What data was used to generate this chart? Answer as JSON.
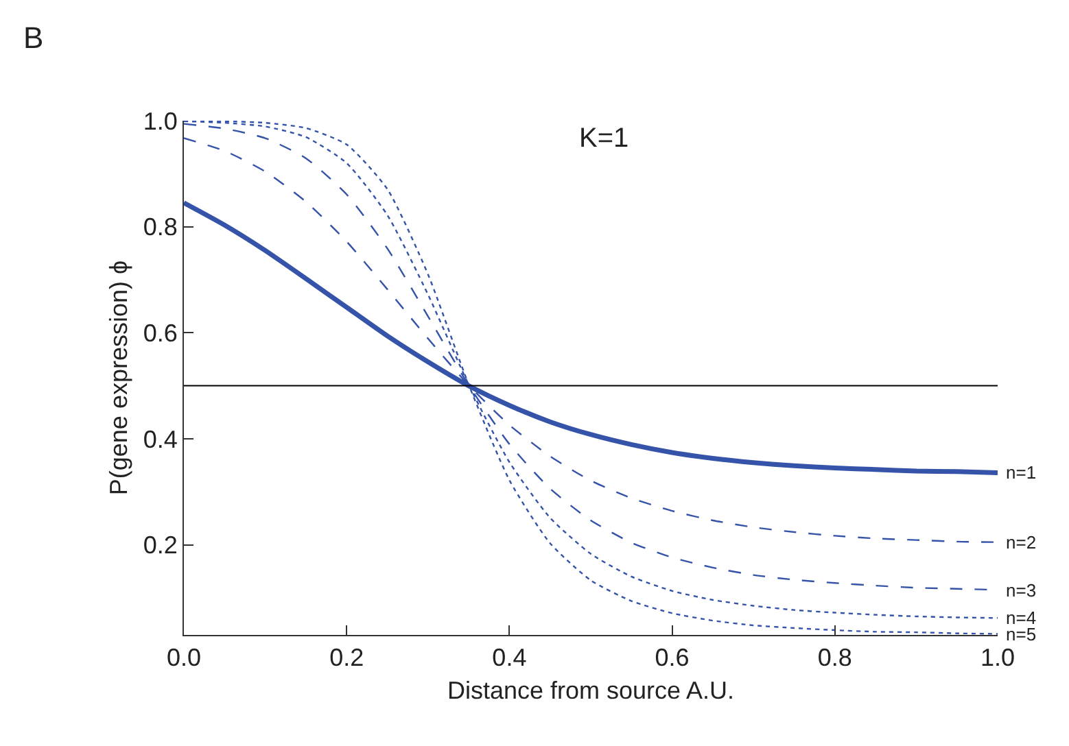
{
  "chart_data": {
    "type": "line",
    "xlabel": "Distance from source A.U.",
    "ylabel": "P(gene expression) ϕ",
    "x": [
      0,
      0.05,
      0.1,
      0.15,
      0.2,
      0.25,
      0.3,
      0.35,
      0.4,
      0.45,
      0.5,
      0.55,
      0.6,
      0.65,
      0.7,
      0.75,
      0.8,
      0.85,
      0.9,
      0.95,
      1.0
    ],
    "series": [
      {
        "name": "n=1",
        "color": "#3553a8",
        "line_style": "solid",
        "values": [
          0.845,
          0.803,
          0.755,
          0.702,
          0.648,
          0.594,
          0.545,
          0.5,
          0.463,
          0.432,
          0.408,
          0.389,
          0.374,
          0.363,
          0.355,
          0.349,
          0.345,
          0.342,
          0.339,
          0.338,
          0.336
        ]
      },
      {
        "name": "n=2",
        "color": "#3553a8",
        "line_style": "dashed",
        "values": [
          0.967,
          0.943,
          0.904,
          0.847,
          0.772,
          0.682,
          0.589,
          0.501,
          0.426,
          0.367,
          0.321,
          0.288,
          0.264,
          0.246,
          0.233,
          0.224,
          0.217,
          0.212,
          0.209,
          0.206,
          0.205
        ]
      },
      {
        "name": "n=3",
        "color": "#3553a8",
        "line_style": "dashed",
        "values": [
          0.994,
          0.985,
          0.967,
          0.929,
          0.861,
          0.759,
          0.631,
          0.501,
          0.39,
          0.306,
          0.246,
          0.204,
          0.176,
          0.157,
          0.143,
          0.134,
          0.128,
          0.123,
          0.119,
          0.117,
          0.115
        ]
      },
      {
        "name": "n=4",
        "color": "#3553a8",
        "line_style": "dotted",
        "values": [
          0.999,
          0.996,
          0.989,
          0.969,
          0.92,
          0.822,
          0.672,
          0.502,
          0.356,
          0.251,
          0.183,
          0.14,
          0.113,
          0.096,
          0.085,
          0.077,
          0.072,
          0.068,
          0.065,
          0.063,
          0.062
        ]
      },
      {
        "name": "n=5",
        "color": "#3553a8",
        "line_style": "dotted",
        "values": [
          1.0,
          0.999,
          0.996,
          0.986,
          0.955,
          0.871,
          0.71,
          0.502,
          0.322,
          0.203,
          0.133,
          0.094,
          0.071,
          0.057,
          0.048,
          0.043,
          0.039,
          0.036,
          0.035,
          0.033,
          0.032
        ]
      }
    ],
    "ref_lines": [
      {
        "axis": "y",
        "value": 0.5,
        "color": "#000000"
      }
    ],
    "annotations": [
      "B",
      "K=1"
    ],
    "xlim": [
      0,
      1.0
    ],
    "ylim": [
      0.03,
      1.0
    ],
    "xticks": [
      {
        "value": 0,
        "label": "0.0"
      },
      0.2,
      0.4,
      0.6,
      0.8,
      {
        "value": 1.0,
        "label": "1.0"
      }
    ],
    "yticks": [
      0.2,
      0.4,
      0.6,
      0.8,
      {
        "value": 1.0,
        "label": "1.0"
      }
    ],
    "legend": false,
    "marker": "none"
  }
}
